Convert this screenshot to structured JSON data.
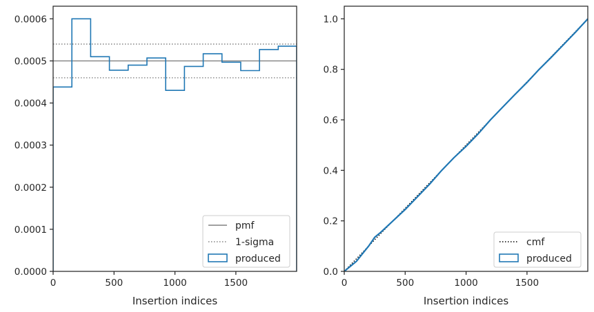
{
  "chart_data": [
    {
      "type": "step",
      "xlabel": "Insertion indices",
      "ylabel": "",
      "xlim": [
        0,
        1999
      ],
      "ylim": [
        0,
        0.00063
      ],
      "x_ticks": [
        0,
        500,
        1000,
        1500
      ],
      "x_tick_labels": [
        "0",
        "500",
        "1000",
        "1500"
      ],
      "y_ticks": [
        0,
        0.0001,
        0.0002,
        0.0003,
        0.0004,
        0.0005,
        0.0006
      ],
      "y_tick_labels": [
        "0.0000",
        "0.0001",
        "0.0002",
        "0.0003",
        "0.0004",
        "0.0005",
        "0.0006"
      ],
      "grid": false,
      "legend": "lower-right",
      "reference_lines": [
        {
          "name": "pmf",
          "y": 0.0005,
          "style": "solid",
          "color": "#808080"
        },
        {
          "name": "1-sigma",
          "y": 0.00054,
          "style": "dotted",
          "color": "#808080"
        },
        {
          "name": "1-sigma",
          "y": 0.00046,
          "style": "dotted",
          "color": "#808080"
        }
      ],
      "series": [
        {
          "name": "produced",
          "color": "#1f77b4",
          "bin_edges": [
            0,
            154,
            308,
            462,
            616,
            770,
            924,
            1078,
            1232,
            1386,
            1540,
            1694,
            1848,
            1999
          ],
          "values": [
            0.000438,
            0.0006,
            0.00051,
            0.000478,
            0.00049,
            0.000507,
            0.00043,
            0.000487,
            0.000517,
            0.000497,
            0.000477,
            0.000527,
            0.000535
          ]
        }
      ],
      "legend_entries": [
        {
          "label": "pmf",
          "style": "solid-line",
          "color": "#808080"
        },
        {
          "label": "1-sigma",
          "style": "dotted-line",
          "color": "#808080"
        },
        {
          "label": "produced",
          "style": "box",
          "color": "#1f77b4"
        }
      ]
    },
    {
      "type": "line",
      "xlabel": "Insertion indices",
      "ylabel": "",
      "xlim": [
        0,
        1999
      ],
      "ylim": [
        0,
        1.05
      ],
      "x_ticks": [
        0,
        500,
        1000,
        1500
      ],
      "x_tick_labels": [
        "0",
        "500",
        "1000",
        "1500"
      ],
      "y_ticks": [
        0,
        0.2,
        0.4,
        0.6,
        0.8,
        1.0
      ],
      "y_tick_labels": [
        "0.0",
        "0.2",
        "0.4",
        "0.6",
        "0.8",
        "1.0"
      ],
      "grid": false,
      "legend": "lower-right",
      "series": [
        {
          "name": "cmf",
          "style": "dotted",
          "color": "#000000",
          "x": [
            0,
            1999
          ],
          "y": [
            0,
            1.0
          ]
        },
        {
          "name": "produced",
          "style": "solid",
          "color": "#1f77b4",
          "x": [
            0,
            100,
            150,
            200,
            250,
            300,
            400,
            500,
            600,
            700,
            800,
            900,
            1000,
            1100,
            1200,
            1300,
            1400,
            1500,
            1600,
            1700,
            1800,
            1900,
            1999
          ],
          "y": [
            0,
            0.04,
            0.07,
            0.1,
            0.135,
            0.155,
            0.2,
            0.245,
            0.295,
            0.345,
            0.4,
            0.45,
            0.495,
            0.545,
            0.6,
            0.65,
            0.7,
            0.748,
            0.8,
            0.848,
            0.898,
            0.948,
            1.0
          ]
        }
      ],
      "legend_entries": [
        {
          "label": "cmf",
          "style": "dotted-line",
          "color": "#000000"
        },
        {
          "label": "produced",
          "style": "box",
          "color": "#1f77b4"
        }
      ]
    }
  ]
}
